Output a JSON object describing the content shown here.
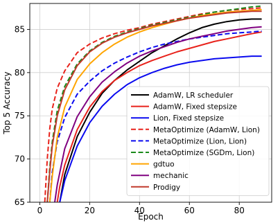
{
  "chart_data": {
    "type": "line",
    "title": "",
    "xlabel": "Epoch",
    "ylabel": "Top 5 Accuracy",
    "xlim": [
      -4,
      93
    ],
    "ylim": [
      65,
      88
    ],
    "xticks": [
      0,
      20,
      40,
      60,
      80
    ],
    "yticks": [
      65,
      70,
      75,
      80,
      85
    ],
    "grid": true,
    "legend_position": "lower-right",
    "series": [
      {
        "name": "AdamW, LR scheduler",
        "color": "#000000",
        "dash": "solid",
        "x": [
          8,
          10,
          15,
          20,
          25,
          30,
          35,
          40,
          45,
          50,
          55,
          60,
          65,
          70,
          75,
          80,
          85,
          89
        ],
        "y": [
          65,
          68.2,
          72.6,
          75.4,
          77.6,
          79.1,
          80.3,
          81.3,
          82.3,
          83.1,
          83.9,
          84.6,
          85.2,
          85.6,
          85.9,
          86.1,
          86.2,
          86.2
        ]
      },
      {
        "name": "AdamW, Fixed stepsize",
        "color": "#e8221b",
        "dash": "solid",
        "x": [
          7,
          8,
          10,
          15,
          20,
          25,
          30,
          35,
          40,
          45,
          50,
          55,
          60,
          65,
          70,
          75,
          80,
          85,
          89
        ],
        "y": [
          65,
          66.8,
          69.3,
          73.4,
          76.0,
          77.8,
          79.1,
          80.0,
          80.8,
          81.4,
          81.9,
          82.4,
          82.8,
          83.2,
          83.6,
          83.9,
          84.2,
          84.5,
          84.7
        ]
      },
      {
        "name": "Lion, Fixed stepsize",
        "color": "#0a0aef",
        "dash": "solid",
        "x": [
          8,
          10,
          15,
          20,
          25,
          30,
          35,
          40,
          45,
          50,
          55,
          60,
          65,
          70,
          75,
          80,
          85,
          89
        ],
        "y": [
          65,
          67.5,
          71.5,
          74.2,
          76.1,
          77.5,
          78.6,
          79.4,
          80.0,
          80.5,
          80.9,
          81.2,
          81.4,
          81.6,
          81.7,
          81.8,
          81.9,
          81.9
        ]
      },
      {
        "name": "MetaOptimize (AdamW, Lion)",
        "color": "#e8221b",
        "dash": "dashed",
        "x": [
          2,
          3,
          4,
          5,
          7,
          10,
          15,
          20,
          25,
          30,
          35,
          40,
          45,
          50,
          55,
          60,
          65,
          70,
          75,
          80,
          85,
          89
        ],
        "y": [
          65,
          70.0,
          73.5,
          75.8,
          78.2,
          80.2,
          82.3,
          83.3,
          84.0,
          84.5,
          84.9,
          85.2,
          85.6,
          85.9,
          86.2,
          86.5,
          86.8,
          87.0,
          87.2,
          87.3,
          87.4,
          87.5
        ]
      },
      {
        "name": "MetaOptimize (Lion, Lion)",
        "color": "#0a0aef",
        "dash": "dashed",
        "x": [
          4,
          5,
          7,
          10,
          15,
          20,
          25,
          30,
          35,
          40,
          45,
          50,
          55,
          60,
          65,
          70,
          75,
          80,
          85,
          89
        ],
        "y": [
          65,
          68.5,
          72.0,
          74.8,
          77.5,
          79.0,
          80.2,
          81.1,
          81.8,
          82.4,
          82.9,
          83.3,
          83.6,
          83.9,
          84.1,
          84.3,
          84.5,
          84.6,
          84.7,
          84.8
        ]
      },
      {
        "name": "MetaOptimize (SGDm, Lion)",
        "color": "#1a8a1a",
        "dash": "dashed",
        "x": [
          3,
          4,
          5,
          7,
          10,
          15,
          20,
          25,
          30,
          35,
          40,
          45,
          50,
          55,
          60,
          65,
          70,
          75,
          80,
          85,
          89
        ],
        "y": [
          65,
          69.0,
          72.0,
          75.6,
          78.4,
          81.0,
          82.5,
          83.5,
          84.2,
          84.7,
          85.1,
          85.5,
          85.8,
          86.1,
          86.4,
          86.7,
          87.0,
          87.2,
          87.4,
          87.6,
          87.7
        ]
      },
      {
        "name": "gdtuo",
        "color": "#ffa500",
        "dash": "solid",
        "x": [
          4,
          5,
          7,
          10,
          15,
          20,
          25,
          30,
          35,
          40,
          45,
          50,
          55,
          60,
          65,
          70,
          75,
          80,
          85,
          89
        ],
        "y": [
          65,
          68.0,
          72.5,
          76.0,
          79.2,
          81.0,
          82.3,
          83.3,
          84.1,
          84.7,
          85.2,
          85.6,
          86.0,
          86.3,
          86.6,
          86.8,
          87.0,
          87.1,
          87.2,
          87.3
        ]
      },
      {
        "name": "mechanic",
        "color": "#800080",
        "dash": "solid",
        "x": [
          6,
          7,
          10,
          15,
          20,
          25,
          30,
          35,
          40,
          45,
          50,
          55,
          60,
          65,
          70,
          75,
          80,
          85,
          89
        ],
        "y": [
          65,
          67.0,
          71.2,
          74.9,
          77.2,
          78.9,
          80.1,
          81.1,
          81.9,
          82.5,
          83.0,
          83.5,
          83.9,
          84.2,
          84.5,
          84.8,
          85.0,
          85.2,
          85.3
        ]
      },
      {
        "name": "Prodigy",
        "color": "#c0392b",
        "dash": "solid",
        "x": [
          3,
          4,
          5,
          7,
          10,
          15,
          20,
          25,
          30,
          35,
          40,
          45,
          50,
          55,
          60,
          65,
          70,
          75,
          80,
          85,
          89
        ],
        "y": [
          65,
          68.5,
          71.5,
          75.0,
          78.0,
          80.8,
          82.4,
          83.4,
          84.1,
          84.6,
          85.0,
          85.4,
          85.7,
          86.0,
          86.3,
          86.5,
          86.7,
          86.9,
          87.0,
          87.1,
          87.1
        ]
      }
    ]
  }
}
